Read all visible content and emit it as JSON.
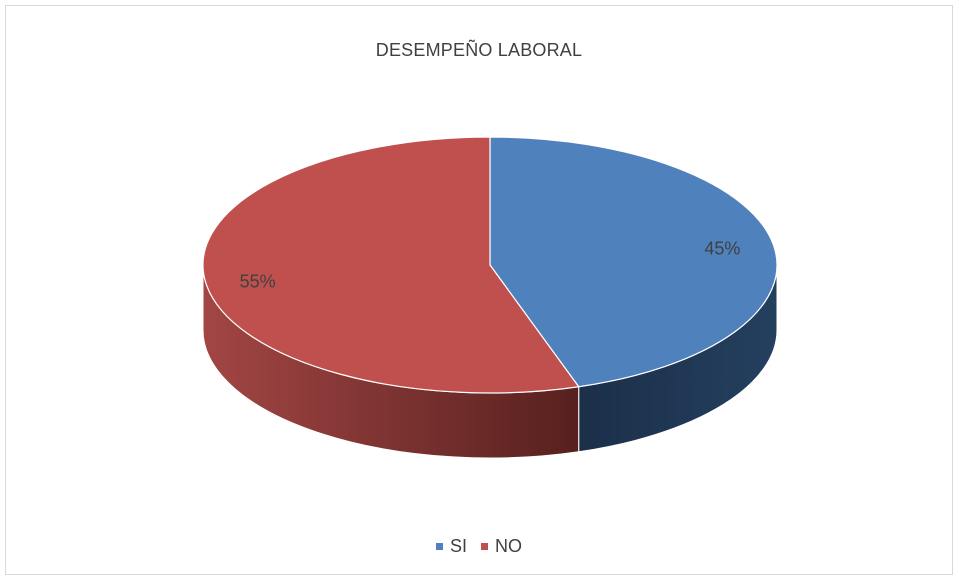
{
  "chart_data": {
    "type": "pie",
    "title": "DESEMPEÑO LABORAL",
    "categories": [
      "SI",
      "NO"
    ],
    "values": [
      45,
      55
    ],
    "data_labels": [
      "45%",
      "55%"
    ],
    "colors": [
      "#4f81bd",
      "#c0504d"
    ],
    "side_colors": [
      "#1f3552",
      "#7a2624"
    ],
    "legend_position": "bottom",
    "style": "3d"
  }
}
